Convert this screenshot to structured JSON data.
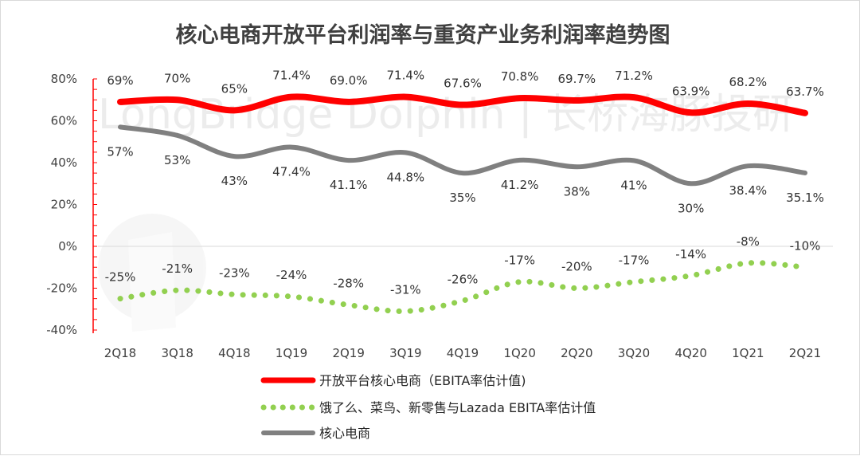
{
  "chart_data": {
    "type": "line",
    "title": "核心电商开放平台利润率与重资产业务利润率趋势图",
    "watermark": "LongBridge Dolphin | 长桥海豚投研",
    "categories": [
      "2Q18",
      "3Q18",
      "4Q18",
      "1Q19",
      "2Q19",
      "3Q19",
      "4Q19",
      "1Q20",
      "2Q20",
      "3Q20",
      "4Q20",
      "1Q21",
      "2Q21"
    ],
    "y_ticks": [
      "80%",
      "60%",
      "40%",
      "20%",
      "0%",
      "-20%",
      "-40%"
    ],
    "ylim": [
      -40,
      80
    ],
    "series": [
      {
        "name": "开放平台核心电商（EBITA率估计值)",
        "style": "solid",
        "color": "#ff0000",
        "values": [
          69,
          70,
          65,
          71.4,
          69.0,
          71.4,
          67.6,
          70.8,
          69.7,
          71.2,
          63.9,
          68.2,
          63.7
        ],
        "labels": [
          "69%",
          "70%",
          "65%",
          "71.4%",
          "69.0%",
          "71.4%",
          "67.6%",
          "70.8%",
          "69.7%",
          "71.2%",
          "63.9%",
          "68.2%",
          "63.7%"
        ]
      },
      {
        "name": "饿了么、菜鸟、新零售与Lazada EBITA率估计值",
        "style": "dotted",
        "color": "#92d050",
        "values": [
          -25,
          -21,
          -23,
          -24,
          -28,
          -31,
          -26,
          -17,
          -20,
          -17,
          -14,
          -8,
          -10
        ],
        "labels": [
          "-25%",
          "-21%",
          "-23%",
          "-24%",
          "-28%",
          "-31%",
          "-26%",
          "-17%",
          "-20%",
          "-17%",
          "-14%",
          "-8%",
          "-10%"
        ]
      },
      {
        "name": "核心电商",
        "style": "solid",
        "color": "#808080",
        "values": [
          57,
          53,
          43,
          47.4,
          41.1,
          44.8,
          35,
          41.2,
          38,
          41,
          30,
          38.4,
          35.1
        ],
        "labels": [
          "57%",
          "53%",
          "43%",
          "47.4%",
          "41.1%",
          "44.8%",
          "35%",
          "41.2%",
          "38%",
          "41%",
          "30%",
          "38.4%",
          "35.1%"
        ]
      }
    ]
  }
}
